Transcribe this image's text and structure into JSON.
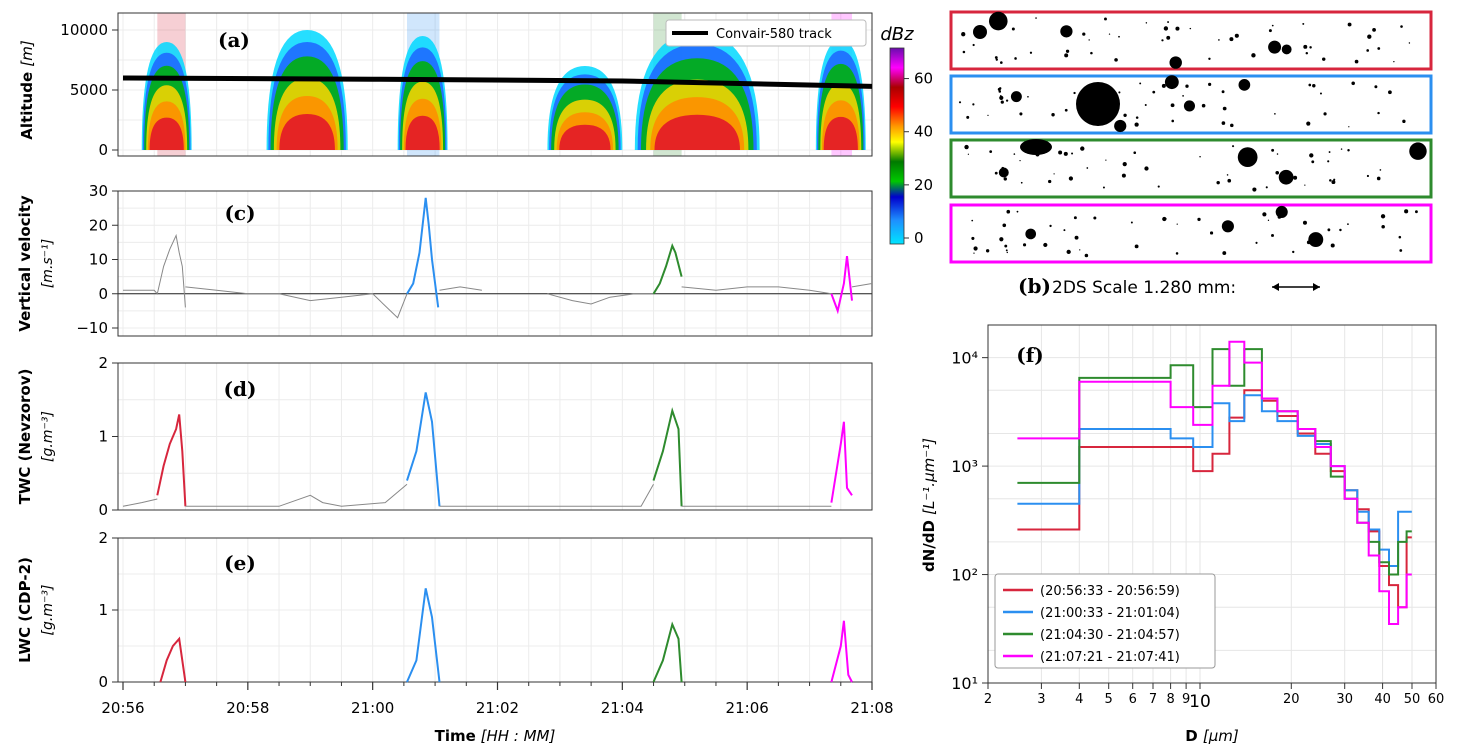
{
  "time_axis": {
    "label": "Time",
    "units": "[HH : MM]",
    "ticks": [
      "20:56",
      "20:58",
      "21:00",
      "21:02",
      "21:04",
      "21:06",
      "21:08"
    ],
    "range_min": [
      0,
      12
    ]
  },
  "segments": [
    {
      "name": "(20:56:33 - 20:56:59)",
      "color": "#d7263d",
      "range_min": [
        0.55,
        1.0
      ]
    },
    {
      "name": "(21:00:33 - 21:01:04)",
      "color": "#2b8ff0",
      "range_min": [
        4.55,
        5.07
      ]
    },
    {
      "name": "(21:04:30 - 21:04:57)",
      "color": "#2e8b2e",
      "range_min": [
        8.5,
        8.95
      ]
    },
    {
      "name": "(21:07:21 - 21:07:41)",
      "color": "#ff00ff",
      "range_min": [
        11.35,
        11.68
      ]
    }
  ],
  "panel_a": {
    "letter": "(a)",
    "ylabel": "Altitude",
    "yunits": "[m]",
    "yticks": [
      "0",
      "5000",
      "10000"
    ],
    "legend": "Convair-580 track",
    "colorbar_label": "dBz",
    "colorbar_ticks": [
      "0",
      "20",
      "40",
      "60"
    ],
    "track_altitude_m": [
      [
        0,
        6000
      ],
      [
        4,
        5900
      ],
      [
        8,
        5750
      ],
      [
        12,
        5300
      ]
    ]
  },
  "panel_b": {
    "letter": "(b)",
    "caption": "2DS Scale 1.280 mm:"
  },
  "chart_data": [
    {
      "type": "line",
      "id": "c",
      "letter": "(c)",
      "ylabel": "Vertical velocity",
      "yunits": "[m.s⁻¹]",
      "ylim": [
        -10,
        30
      ],
      "yticks": [
        "−10",
        "0",
        "10",
        "20",
        "30"
      ],
      "x": "minutes after 20:56",
      "series": [
        {
          "points": [
            [
              0.0,
              1
            ],
            [
              0.5,
              1
            ],
            [
              0.55,
              0
            ],
            [
              0.65,
              8
            ],
            [
              0.75,
              13
            ],
            [
              0.85,
              17
            ],
            [
              0.9,
              12
            ],
            [
              0.95,
              8
            ],
            [
              1.0,
              -4
            ]
          ]
        },
        {
          "points": [
            [
              1.0,
              2
            ],
            [
              1.5,
              1
            ],
            [
              2.0,
              0
            ],
            [
              2.5,
              0
            ],
            [
              3.0,
              -2
            ],
            [
              3.5,
              -1
            ],
            [
              4.0,
              0
            ],
            [
              4.4,
              -7
            ],
            [
              4.55,
              0
            ]
          ]
        },
        {
          "points": [
            [
              4.55,
              0
            ],
            [
              4.65,
              3
            ],
            [
              4.75,
              12
            ],
            [
              4.85,
              28
            ],
            [
              4.9,
              20
            ],
            [
              4.95,
              10
            ],
            [
              5.05,
              -4
            ]
          ]
        },
        {
          "points": [
            [
              5.07,
              1
            ],
            [
              5.4,
              2
            ],
            [
              5.75,
              1
            ]
          ]
        },
        {
          "points": [
            [
              6.8,
              0
            ],
            [
              7.2,
              -2
            ],
            [
              7.5,
              -3
            ],
            [
              7.8,
              -1
            ],
            [
              8.2,
              0
            ],
            [
              8.5,
              0
            ]
          ]
        },
        {
          "points": [
            [
              8.5,
              0
            ],
            [
              8.6,
              3
            ],
            [
              8.7,
              8
            ],
            [
              8.8,
              14
            ],
            [
              8.85,
              12
            ],
            [
              8.95,
              5
            ]
          ]
        },
        {
          "points": [
            [
              8.95,
              2
            ],
            [
              9.5,
              1
            ],
            [
              10.0,
              2
            ],
            [
              10.5,
              2
            ],
            [
              11.0,
              1
            ],
            [
              11.35,
              0
            ]
          ]
        },
        {
          "points": [
            [
              11.35,
              0
            ],
            [
              11.45,
              -5
            ],
            [
              11.55,
              3
            ],
            [
              11.6,
              11
            ],
            [
              11.68,
              -2
            ]
          ]
        },
        {
          "points": [
            [
              11.68,
              2
            ],
            [
              12.0,
              3
            ]
          ]
        }
      ]
    },
    {
      "type": "line",
      "id": "d",
      "letter": "(d)",
      "ylabel": "TWC (Nevzorov)",
      "yunits": "[g.m⁻³]",
      "ylim": [
        0,
        2
      ],
      "yticks": [
        "0",
        "1",
        "2"
      ],
      "series": [
        {
          "points": [
            [
              0.0,
              0.05
            ],
            [
              0.3,
              0.1
            ],
            [
              0.55,
              0.15
            ]
          ]
        },
        {
          "points": [
            [
              0.55,
              0.2
            ],
            [
              0.65,
              0.6
            ],
            [
              0.75,
              0.9
            ],
            [
              0.85,
              1.1
            ],
            [
              0.9,
              1.3
            ],
            [
              0.95,
              0.8
            ],
            [
              1.0,
              0.05
            ]
          ]
        },
        {
          "points": [
            [
              1.0,
              0.05
            ],
            [
              2.5,
              0.05
            ],
            [
              3.0,
              0.2
            ],
            [
              3.2,
              0.1
            ],
            [
              3.5,
              0.05
            ],
            [
              4.2,
              0.1
            ],
            [
              4.55,
              0.35
            ]
          ]
        },
        {
          "points": [
            [
              4.55,
              0.4
            ],
            [
              4.7,
              0.8
            ],
            [
              4.85,
              1.6
            ],
            [
              4.95,
              1.2
            ],
            [
              5.07,
              0.05
            ]
          ]
        },
        {
          "points": [
            [
              5.07,
              0.05
            ],
            [
              8.3,
              0.05
            ],
            [
              8.5,
              0.35
            ]
          ]
        },
        {
          "points": [
            [
              8.5,
              0.4
            ],
            [
              8.65,
              0.8
            ],
            [
              8.8,
              1.35
            ],
            [
              8.9,
              1.1
            ],
            [
              8.95,
              0.05
            ]
          ]
        },
        {
          "points": [
            [
              8.95,
              0.05
            ],
            [
              11.35,
              0.05
            ]
          ]
        },
        {
          "points": [
            [
              11.35,
              0.1
            ],
            [
              11.5,
              0.9
            ],
            [
              11.55,
              1.2
            ],
            [
              11.6,
              0.3
            ],
            [
              11.68,
              0.2
            ]
          ]
        }
      ]
    },
    {
      "type": "line",
      "id": "e",
      "letter": "(e)",
      "ylabel": "LWC (CDP-2)",
      "yunits": "[g.m⁻³]",
      "ylim": [
        0,
        2
      ],
      "yticks": [
        "0",
        "1",
        "2"
      ],
      "series": [
        {
          "points": [
            [
              0.6,
              0
            ],
            [
              0.7,
              0.3
            ],
            [
              0.8,
              0.5
            ],
            [
              0.9,
              0.6
            ],
            [
              1.0,
              0
            ]
          ]
        },
        {
          "points": [
            [
              4.55,
              0
            ],
            [
              4.7,
              0.3
            ],
            [
              4.85,
              1.3
            ],
            [
              4.95,
              0.9
            ],
            [
              5.07,
              0
            ]
          ]
        },
        {
          "points": [
            [
              8.5,
              0
            ],
            [
              8.65,
              0.3
            ],
            [
              8.8,
              0.8
            ],
            [
              8.9,
              0.6
            ],
            [
              8.95,
              0
            ]
          ]
        },
        {
          "points": [
            [
              11.35,
              0
            ],
            [
              11.5,
              0.5
            ],
            [
              11.55,
              0.85
            ],
            [
              11.62,
              0.1
            ],
            [
              11.68,
              0
            ]
          ]
        }
      ]
    },
    {
      "type": "line",
      "id": "f",
      "letter": "(f)",
      "xlabel": "D",
      "xunits": "[μm]",
      "ylabel": "dN/dD",
      "yunits": "[L⁻¹.μm⁻¹]",
      "xscale": "log",
      "yscale": "log",
      "xlim": [
        2,
        60
      ],
      "ylim": [
        10,
        20000
      ],
      "xticks": [
        "2",
        "3",
        "4",
        "5",
        "6",
        "7",
        "8",
        "9",
        "10",
        "20",
        "30",
        "40",
        "50",
        "60"
      ],
      "yticks": [
        "10¹",
        "10²",
        "10³",
        "10⁴"
      ],
      "grid": true,
      "legend_position": "lower-left",
      "x": [
        2.5,
        4,
        6,
        8,
        9.5,
        11,
        12.5,
        14,
        16,
        18,
        21,
        24,
        27,
        30,
        33,
        36,
        39,
        42,
        45,
        48
      ],
      "series": [
        {
          "name": "(20:56:33 - 20:56:59)",
          "values": [
            260,
            1500,
            1500,
            1500,
            900,
            1300,
            2800,
            5000,
            4000,
            2900,
            2000,
            1300,
            900,
            600,
            400,
            250,
            120,
            80,
            50,
            220
          ]
        },
        {
          "name": "(21:00:33 - 21:01:04)",
          "values": [
            450,
            2200,
            2200,
            1800,
            1500,
            3800,
            2600,
            4500,
            3200,
            2600,
            1900,
            1600,
            1000,
            600,
            380,
            260,
            170,
            120,
            380,
            380
          ]
        },
        {
          "name": "(21:04:30 - 21:04:57)",
          "values": [
            700,
            6500,
            6500,
            8500,
            3500,
            12000,
            5500,
            12000,
            4200,
            3200,
            2200,
            1700,
            800,
            500,
            300,
            200,
            130,
            100,
            200,
            250
          ]
        },
        {
          "name": "(21:07:21 - 21:07:41)",
          "values": [
            1800,
            6000,
            6000,
            3500,
            2400,
            5500,
            14000,
            9000,
            4200,
            3200,
            2200,
            1500,
            1000,
            500,
            300,
            150,
            70,
            35,
            50,
            100
          ]
        }
      ]
    }
  ]
}
